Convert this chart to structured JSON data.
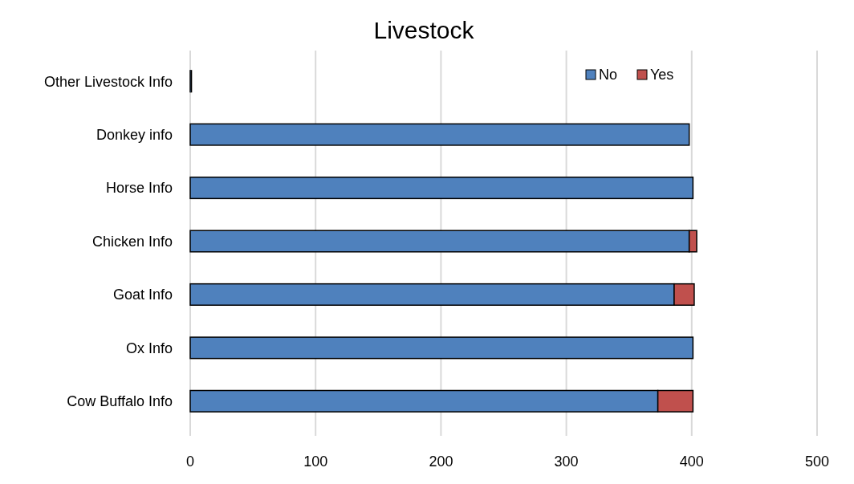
{
  "chart_data": {
    "type": "bar",
    "title": "Livestock",
    "orientation": "horizontal",
    "stacked": true,
    "categories": [
      "Other Livestock Info",
      "Donkey info",
      "Horse Info",
      "Chicken Info",
      "Goat Info",
      "Ox Info",
      "Cow Buffalo Info"
    ],
    "series": [
      {
        "name": "No",
        "color": "#4f81bd",
        "values": [
          1,
          398,
          401,
          398,
          386,
          401,
          373
        ]
      },
      {
        "name": "Yes",
        "color": "#c0504d",
        "values": [
          0,
          0,
          0,
          6,
          16,
          0,
          28
        ]
      }
    ],
    "xlim": [
      0,
      500
    ],
    "xticks": [
      0,
      100,
      200,
      300,
      400,
      500
    ],
    "grid": "x",
    "legend": "top right"
  }
}
